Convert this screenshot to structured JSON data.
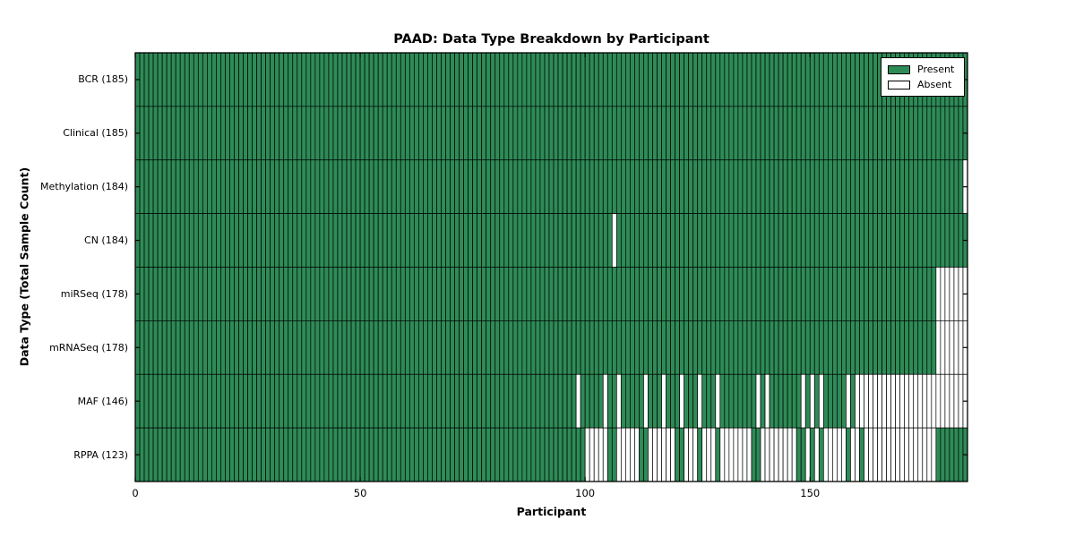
{
  "chart_data": {
    "type": "heatmap",
    "title": "PAAD: Data Type Breakdown by Participant",
    "xlabel": "Participant",
    "ylabel": "Data Type (Total Sample Count)",
    "n_participants": 185,
    "x_ticks": [
      0,
      50,
      100,
      150
    ],
    "legend": [
      {
        "label": "Present",
        "color": "#2e8b57"
      },
      {
        "label": "Absent",
        "color": "#ffffff"
      }
    ],
    "colors": {
      "present": "#2e8b57",
      "absent": "#ffffff",
      "cell_border": "#000000",
      "spine": "#000000"
    },
    "rows": [
      {
        "label": "BCR (185)",
        "data_type": "BCR",
        "present_count": 185,
        "absent_ranges": []
      },
      {
        "label": "Clinical (185)",
        "data_type": "Clinical",
        "present_count": 185,
        "absent_ranges": []
      },
      {
        "label": "Methylation (184)",
        "data_type": "Methylation",
        "present_count": 184,
        "absent_ranges": [
          [
            184,
            184
          ]
        ]
      },
      {
        "label": "CN (184)",
        "data_type": "CN",
        "present_count": 184,
        "absent_ranges": [
          [
            106,
            106
          ]
        ]
      },
      {
        "label": "miRSeq (178)",
        "data_type": "miRSeq",
        "present_count": 178,
        "absent_ranges": [
          [
            178,
            184
          ]
        ]
      },
      {
        "label": "mRNASeq (178)",
        "data_type": "mRNASeq",
        "present_count": 178,
        "absent_ranges": [
          [
            178,
            184
          ]
        ]
      },
      {
        "label": "MAF (146)",
        "data_type": "MAF",
        "present_count": 146,
        "absent_ranges": [
          [
            98,
            98
          ],
          [
            104,
            104
          ],
          [
            107,
            107
          ],
          [
            113,
            113
          ],
          [
            117,
            117
          ],
          [
            121,
            121
          ],
          [
            125,
            125
          ],
          [
            129,
            129
          ],
          [
            138,
            138
          ],
          [
            140,
            140
          ],
          [
            148,
            148
          ],
          [
            150,
            150
          ],
          [
            152,
            152
          ],
          [
            158,
            158
          ],
          [
            160,
            184
          ]
        ]
      },
      {
        "label": "RPPA (123)",
        "data_type": "RPPA",
        "present_count": 123,
        "absent_ranges": [
          [
            100,
            104
          ],
          [
            107,
            111
          ],
          [
            114,
            119
          ],
          [
            122,
            124
          ],
          [
            126,
            128
          ],
          [
            130,
            136
          ],
          [
            139,
            146
          ],
          [
            149,
            149
          ],
          [
            151,
            151
          ],
          [
            153,
            157
          ],
          [
            159,
            160
          ],
          [
            162,
            177
          ]
        ]
      }
    ]
  }
}
